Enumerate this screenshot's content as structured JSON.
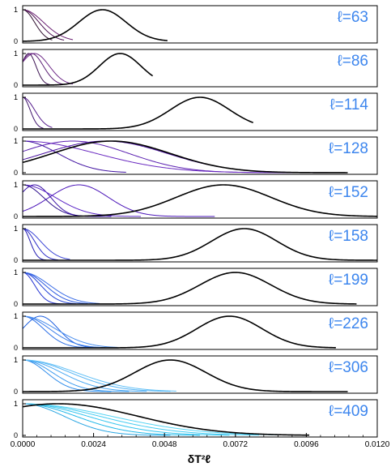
{
  "chart_data": {
    "type": "line",
    "xlabel": "δT²ℓ",
    "xlim": [
      0,
      0.012
    ],
    "x_ticks": [
      "0.0000",
      "0.0024",
      "0.0048",
      "0.0072",
      "0.0096",
      "0.0120"
    ],
    "y_ticks": [
      "0",
      "1"
    ],
    "ylim": [
      0,
      1
    ],
    "grid": false,
    "colors": {
      "label": "#3d86ee",
      "frame": "#000000",
      "main_curve": "#000000"
    },
    "panels": [
      {
        "label": "ℓ=63",
        "curves": [
          {
            "color": "#000000",
            "mu": 0.0027,
            "sigma": 0.0008,
            "end": 0.0049,
            "peak": 1.0
          },
          {
            "color": "#2a0a2a",
            "mu": 0.0,
            "sigma": 0.0004,
            "end": 0.001,
            "peak": 1.0
          },
          {
            "color": "#4a1050",
            "mu": 0.0,
            "sigma": 0.00055,
            "end": 0.0014,
            "peak": 1.0
          },
          {
            "color": "#6a1f72",
            "mu": 0.0,
            "sigma": 0.0007,
            "end": 0.0017,
            "peak": 1.0
          }
        ]
      },
      {
        "label": "ℓ=86",
        "curves": [
          {
            "color": "#000000",
            "mu": 0.0033,
            "sigma": 0.0007,
            "end": 0.0044,
            "peak": 1.0
          },
          {
            "color": "#3a1050",
            "mu": 0.0002,
            "sigma": 0.00025,
            "end": 0.001,
            "peak": 1.0
          },
          {
            "color": "#5a1d74",
            "mu": 0.0003,
            "sigma": 0.0004,
            "end": 0.0014,
            "peak": 1.0
          },
          {
            "color": "#6e2a88",
            "mu": 0.0004,
            "sigma": 0.0005,
            "end": 0.0017,
            "peak": 1.0
          }
        ]
      },
      {
        "label": "ℓ=114",
        "curves": [
          {
            "color": "#000000",
            "mu": 0.006,
            "sigma": 0.001,
            "end": 0.0078,
            "peak": 1.0
          },
          {
            "color": "#3c106a",
            "mu": 0.0,
            "sigma": 0.00025,
            "end": 0.0007,
            "peak": 1.0
          },
          {
            "color": "#52198a",
            "mu": 0.0,
            "sigma": 0.0004,
            "end": 0.001,
            "peak": 1.0
          }
        ]
      },
      {
        "label": "ℓ=128",
        "curves": [
          {
            "color": "#000000",
            "mu": 0.003,
            "sigma": 0.002,
            "end": 0.011,
            "peak": 1.0
          },
          {
            "color": "#4a12a0",
            "mu": 0.0028,
            "sigma": 0.0021,
            "end": 0.011,
            "peak": 1.0
          },
          {
            "color": "#5a1fb0",
            "mu": 0.0017,
            "sigma": 0.0019,
            "end": 0.0095,
            "peak": 1.0
          },
          {
            "color": "#6a2ac0",
            "mu": 0.0,
            "sigma": 0.0025,
            "end": 0.0095,
            "peak": 1.0
          },
          {
            "color": "#3f10a0",
            "mu": 0.0,
            "sigma": 0.0012,
            "end": 0.0035,
            "peak": 1.0
          }
        ]
      },
      {
        "label": "ℓ=152",
        "curves": [
          {
            "color": "#000000",
            "mu": 0.0068,
            "sigma": 0.0016,
            "end": 0.012,
            "peak": 1.0
          },
          {
            "color": "#4a14b8",
            "mu": 0.0019,
            "sigma": 0.001,
            "end": 0.0065,
            "peak": 1.0
          },
          {
            "color": "#3a12a6",
            "mu": 0.0004,
            "sigma": 0.00055,
            "end": 0.003,
            "peak": 1.0
          },
          {
            "color": "#5b26c6",
            "mu": 0.0,
            "sigma": 0.0011,
            "end": 0.004,
            "peak": 1.0
          },
          {
            "color": "#2c0d8c",
            "mu": 0.0,
            "sigma": 0.0007,
            "end": 0.0025,
            "peak": 1.0
          }
        ]
      },
      {
        "label": "ℓ=158",
        "curves": [
          {
            "color": "#000000",
            "mu": 0.0075,
            "sigma": 0.0011,
            "end": 0.012,
            "peak": 1.0
          },
          {
            "color": "#1f18b0",
            "mu": 0.0,
            "sigma": 0.00025,
            "end": 0.0008,
            "peak": 1.0
          },
          {
            "color": "#2a2ac8",
            "mu": 0.0,
            "sigma": 0.0004,
            "end": 0.0012,
            "peak": 1.0
          },
          {
            "color": "#3a44d6",
            "mu": 0.0,
            "sigma": 0.0006,
            "end": 0.0016,
            "peak": 1.0
          }
        ]
      },
      {
        "label": "ℓ=199",
        "curves": [
          {
            "color": "#000000",
            "mu": 0.0072,
            "sigma": 0.0012,
            "end": 0.0113,
            "peak": 1.0
          },
          {
            "color": "#1f2fd0",
            "mu": 0.0,
            "sigma": 0.0004,
            "end": 0.0014,
            "peak": 1.0
          },
          {
            "color": "#2040d6",
            "mu": 0.0,
            "sigma": 0.0006,
            "end": 0.0018,
            "peak": 1.0
          },
          {
            "color": "#2a58e0",
            "mu": 0.0,
            "sigma": 0.00075,
            "end": 0.0022,
            "peak": 1.0
          },
          {
            "color": "#3a6ce6",
            "mu": 0.0,
            "sigma": 0.0009,
            "end": 0.0026,
            "peak": 1.0
          }
        ]
      },
      {
        "label": "ℓ=226",
        "curves": [
          {
            "color": "#000000",
            "mu": 0.007,
            "sigma": 0.0011,
            "end": 0.0106,
            "peak": 1.0
          },
          {
            "color": "#1c5fe0",
            "mu": 0.0006,
            "sigma": 0.0006,
            "end": 0.0025,
            "peak": 1.0
          },
          {
            "color": "#2a6ee6",
            "mu": 0.0,
            "sigma": 0.0007,
            "end": 0.0022,
            "peak": 1.0
          },
          {
            "color": "#3b7eea",
            "mu": 0.0,
            "sigma": 0.0009,
            "end": 0.0028,
            "peak": 1.0
          },
          {
            "color": "#4a8eee",
            "mu": 0.0,
            "sigma": 0.0011,
            "end": 0.0032,
            "peak": 1.0
          }
        ]
      },
      {
        "label": "ℓ=306",
        "curves": [
          {
            "color": "#000000",
            "mu": 0.005,
            "sigma": 0.0012,
            "end": 0.011,
            "peak": 1.0
          },
          {
            "color": "#2e8cea",
            "mu": 0.0,
            "sigma": 0.0008,
            "end": 0.003,
            "peak": 1.0
          },
          {
            "color": "#3b9aee",
            "mu": 0.0,
            "sigma": 0.001,
            "end": 0.0036,
            "peak": 1.0
          },
          {
            "color": "#4aa8f2",
            "mu": 0.0,
            "sigma": 0.0013,
            "end": 0.0042,
            "peak": 1.0
          },
          {
            "color": "#55b4f4",
            "mu": 0.0,
            "sigma": 0.0016,
            "end": 0.005,
            "peak": 1.0
          },
          {
            "color": "#62c0f6",
            "mu": 0.0,
            "sigma": 0.0018,
            "end": 0.0052,
            "peak": 1.0
          }
        ]
      },
      {
        "label": "ℓ=409",
        "curves": [
          {
            "color": "#000000",
            "mu": 0.0012,
            "sigma": 0.0027,
            "end": 0.0097,
            "peak": 1.0
          },
          {
            "color": "#22b8e8",
            "mu": 0.0,
            "sigma": 0.0018,
            "end": 0.006,
            "peak": 1.0
          },
          {
            "color": "#33c4ee",
            "mu": 0.0,
            "sigma": 0.0022,
            "end": 0.007,
            "peak": 1.0
          },
          {
            "color": "#44ccf2",
            "mu": 0.0,
            "sigma": 0.0026,
            "end": 0.008,
            "peak": 1.0
          },
          {
            "color": "#55d4f4",
            "mu": 0.0,
            "sigma": 0.003,
            "end": 0.009,
            "peak": 1.0
          },
          {
            "color": "#2aa6e2",
            "mu": 0.0,
            "sigma": 0.0014,
            "end": 0.005,
            "peak": 1.0
          }
        ]
      }
    ]
  }
}
